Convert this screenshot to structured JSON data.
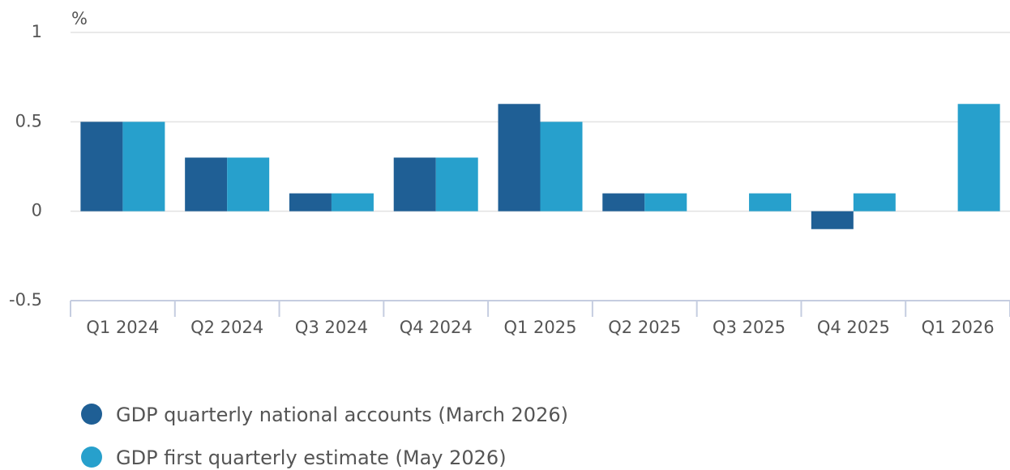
{
  "chart_data": {
    "type": "bar",
    "y_label": "%",
    "categories": [
      "Q1 2024",
      "Q2 2024",
      "Q3 2024",
      "Q4 2024",
      "Q1 2025",
      "Q2 2025",
      "Q3 2025",
      "Q4 2025",
      "Q1 2026"
    ],
    "series": [
      {
        "name": "GDP quarterly national accounts (March 2026)",
        "color": "#1f5f95",
        "values": [
          0.5,
          0.3,
          0.1,
          0.3,
          0.6,
          0.1,
          0,
          -0.1,
          null
        ]
      },
      {
        "name": "GDP first quarterly estimate (May 2026)",
        "color": "#27a0cc",
        "values": [
          0.5,
          0.3,
          0.1,
          0.3,
          0.5,
          0.1,
          0.1,
          0.1,
          0.6
        ]
      }
    ],
    "ylim": [
      -0.5,
      1
    ],
    "yticks": [
      -0.5,
      0,
      0.5,
      1
    ],
    "grid": true
  }
}
